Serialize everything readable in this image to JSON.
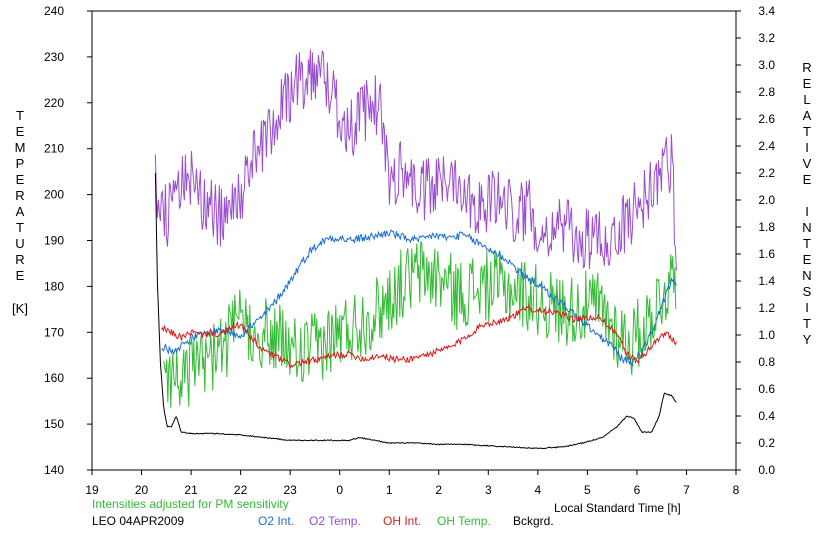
{
  "chart_data": {
    "type": "line",
    "x_axis": {
      "label": "Local Standard Time [h]",
      "range": [
        19,
        32
      ],
      "ticks": [
        19,
        20,
        21,
        22,
        23,
        24,
        25,
        26,
        27,
        28,
        29,
        30,
        31,
        32
      ],
      "tick_labels": [
        "19",
        "20",
        "21",
        "22",
        "23",
        "0",
        "1",
        "2",
        "3",
        "4",
        "5",
        "6",
        "7",
        "8"
      ]
    },
    "y_left": {
      "label_letters": [
        "T",
        "E",
        "M",
        "P",
        "E",
        "R",
        "A",
        "T",
        "U",
        "R",
        "E"
      ],
      "unit": "[K]",
      "range": [
        140,
        240
      ],
      "ticks": [
        140,
        150,
        160,
        170,
        180,
        190,
        200,
        210,
        220,
        230,
        240
      ]
    },
    "y_right": {
      "label_word1": [
        "R",
        "E",
        "L",
        "A",
        "T",
        "I",
        "V",
        "E"
      ],
      "label_word2": [
        "I",
        "N",
        "T",
        "E",
        "N",
        "S",
        "I",
        "T",
        "Y"
      ],
      "range": [
        0,
        3.4
      ],
      "ticks": [
        "0.0",
        "0.2",
        "0.4",
        "0.6",
        "0.8",
        "1.0",
        "1.2",
        "1.4",
        "1.6",
        "1.8",
        "2.0",
        "2.2",
        "2.4",
        "2.6",
        "2.8",
        "3.0",
        "3.2",
        "3.4"
      ]
    },
    "grid": false,
    "note": "Intensities adjusted for PM sensitivity",
    "station": "LEO 04APR2009",
    "legend": [
      "O2 Int.",
      "O2 Temp.",
      "OH Int.",
      "OH Temp.",
      "Bckgrd."
    ],
    "colors": {
      "O2 Int.": "#1a6fd6",
      "O2 Temp.": "#9a4fd0",
      "OH Int.": "#dd1a1a",
      "OH Temp.": "#33bb33",
      "Bckgrd.": "#000000",
      "note": "#33bb33"
    },
    "series": [
      {
        "name": "O2 Temp.",
        "axis": "left",
        "noise": 7,
        "x": [
          20.28,
          20.5,
          20.7,
          21.0,
          21.3,
          21.6,
          22.0,
          22.3,
          22.6,
          23.0,
          23.3,
          23.6,
          23.9,
          24.2,
          24.5,
          24.8,
          25.0,
          25.3,
          25.6,
          26.0,
          26.3,
          26.6,
          26.9,
          27.2,
          27.5,
          27.8,
          28.1,
          28.4,
          28.7,
          29.0,
          29.3,
          29.6,
          29.9,
          30.2,
          30.5,
          30.7,
          30.8
        ],
        "y": [
          202,
          195,
          200,
          204,
          197,
          195,
          200,
          208,
          215,
          222,
          226,
          228,
          220,
          214,
          218,
          220,
          203,
          206,
          200,
          202,
          205,
          200,
          197,
          200,
          196,
          197,
          192,
          194,
          191,
          190,
          190,
          191,
          196,
          200,
          205,
          208,
          185
        ]
      },
      {
        "name": "OH Temp.",
        "axis": "left",
        "noise": 8,
        "x": [
          20.45,
          20.8,
          21.2,
          21.6,
          22.0,
          22.4,
          22.8,
          23.2,
          23.6,
          24.0,
          24.4,
          24.8,
          25.2,
          25.6,
          26.0,
          26.4,
          26.8,
          27.2,
          27.6,
          28.0,
          28.4,
          28.8,
          29.2,
          29.6,
          29.9,
          30.2,
          30.5,
          30.8
        ],
        "y": [
          162,
          160,
          163,
          166,
          172,
          170,
          168,
          165,
          167,
          170,
          172,
          175,
          180,
          183,
          182,
          178,
          180,
          180,
          179,
          177,
          175,
          175,
          176,
          170,
          168,
          172,
          178,
          183
        ]
      },
      {
        "name": "O2 Int.",
        "axis": "right",
        "noise": 0.03,
        "x": [
          20.4,
          20.6,
          20.8,
          21.0,
          21.2,
          21.4,
          21.6,
          21.8,
          22.0,
          22.2,
          22.4,
          22.6,
          22.8,
          23.0,
          23.2,
          23.4,
          23.6,
          23.8,
          24.0,
          24.2,
          24.5,
          24.8,
          25.0,
          25.3,
          25.6,
          25.9,
          26.2,
          26.5,
          26.8,
          27.1,
          27.4,
          27.7,
          28.0,
          28.3,
          28.6,
          28.9,
          29.2,
          29.5,
          29.7,
          29.9,
          30.1,
          30.3,
          30.5,
          30.7,
          30.8
        ],
        "y": [
          0.92,
          0.88,
          0.92,
          0.98,
          1.0,
          1.02,
          1.04,
          1.02,
          1.0,
          1.06,
          1.12,
          1.2,
          1.3,
          1.4,
          1.52,
          1.62,
          1.68,
          1.72,
          1.72,
          1.7,
          1.72,
          1.74,
          1.76,
          1.72,
          1.7,
          1.74,
          1.72,
          1.74,
          1.68,
          1.62,
          1.55,
          1.44,
          1.38,
          1.28,
          1.2,
          1.1,
          1.0,
          0.92,
          0.82,
          0.8,
          0.88,
          1.02,
          1.22,
          1.4,
          1.36
        ]
      },
      {
        "name": "OH Int.",
        "axis": "right",
        "noise": 0.025,
        "x": [
          20.4,
          20.6,
          20.8,
          21.0,
          21.2,
          21.4,
          21.6,
          21.8,
          22.0,
          22.2,
          22.4,
          22.6,
          22.8,
          23.0,
          23.3,
          23.6,
          23.9,
          24.2,
          24.5,
          24.8,
          25.1,
          25.4,
          25.7,
          26.0,
          26.3,
          26.6,
          26.9,
          27.2,
          27.5,
          27.8,
          28.1,
          28.4,
          28.7,
          29.0,
          29.2,
          29.4,
          29.6,
          29.8,
          30.0,
          30.2,
          30.4,
          30.6,
          30.8
        ],
        "y": [
          1.05,
          1.02,
          0.98,
          1.02,
          1.0,
          1.02,
          1.0,
          1.05,
          1.08,
          0.98,
          0.9,
          0.86,
          0.82,
          0.78,
          0.8,
          0.82,
          0.85,
          0.86,
          0.82,
          0.85,
          0.82,
          0.82,
          0.85,
          0.88,
          0.92,
          1.0,
          1.08,
          1.1,
          1.14,
          1.2,
          1.18,
          1.16,
          1.12,
          1.12,
          1.14,
          1.08,
          1.0,
          0.86,
          0.8,
          0.88,
          0.96,
          1.02,
          0.94
        ]
      },
      {
        "name": "Bckgrd.",
        "axis": "right",
        "noise": 0.004,
        "x": [
          20.28,
          20.32,
          20.38,
          20.45,
          20.52,
          20.6,
          20.7,
          20.8,
          21.0,
          21.5,
          22.0,
          22.5,
          23.0,
          23.5,
          24.0,
          24.2,
          24.4,
          25.0,
          25.5,
          26.0,
          26.5,
          27.0,
          27.5,
          28.0,
          28.5,
          28.9,
          29.3,
          29.6,
          29.8,
          29.95,
          30.1,
          30.3,
          30.45,
          30.55,
          30.7,
          30.8
        ],
        "y": [
          2.2,
          1.4,
          0.8,
          0.45,
          0.32,
          0.32,
          0.4,
          0.28,
          0.27,
          0.27,
          0.26,
          0.24,
          0.22,
          0.22,
          0.22,
          0.22,
          0.24,
          0.2,
          0.2,
          0.19,
          0.19,
          0.18,
          0.17,
          0.16,
          0.17,
          0.2,
          0.24,
          0.32,
          0.4,
          0.38,
          0.28,
          0.28,
          0.4,
          0.57,
          0.55,
          0.5
        ]
      }
    ]
  }
}
